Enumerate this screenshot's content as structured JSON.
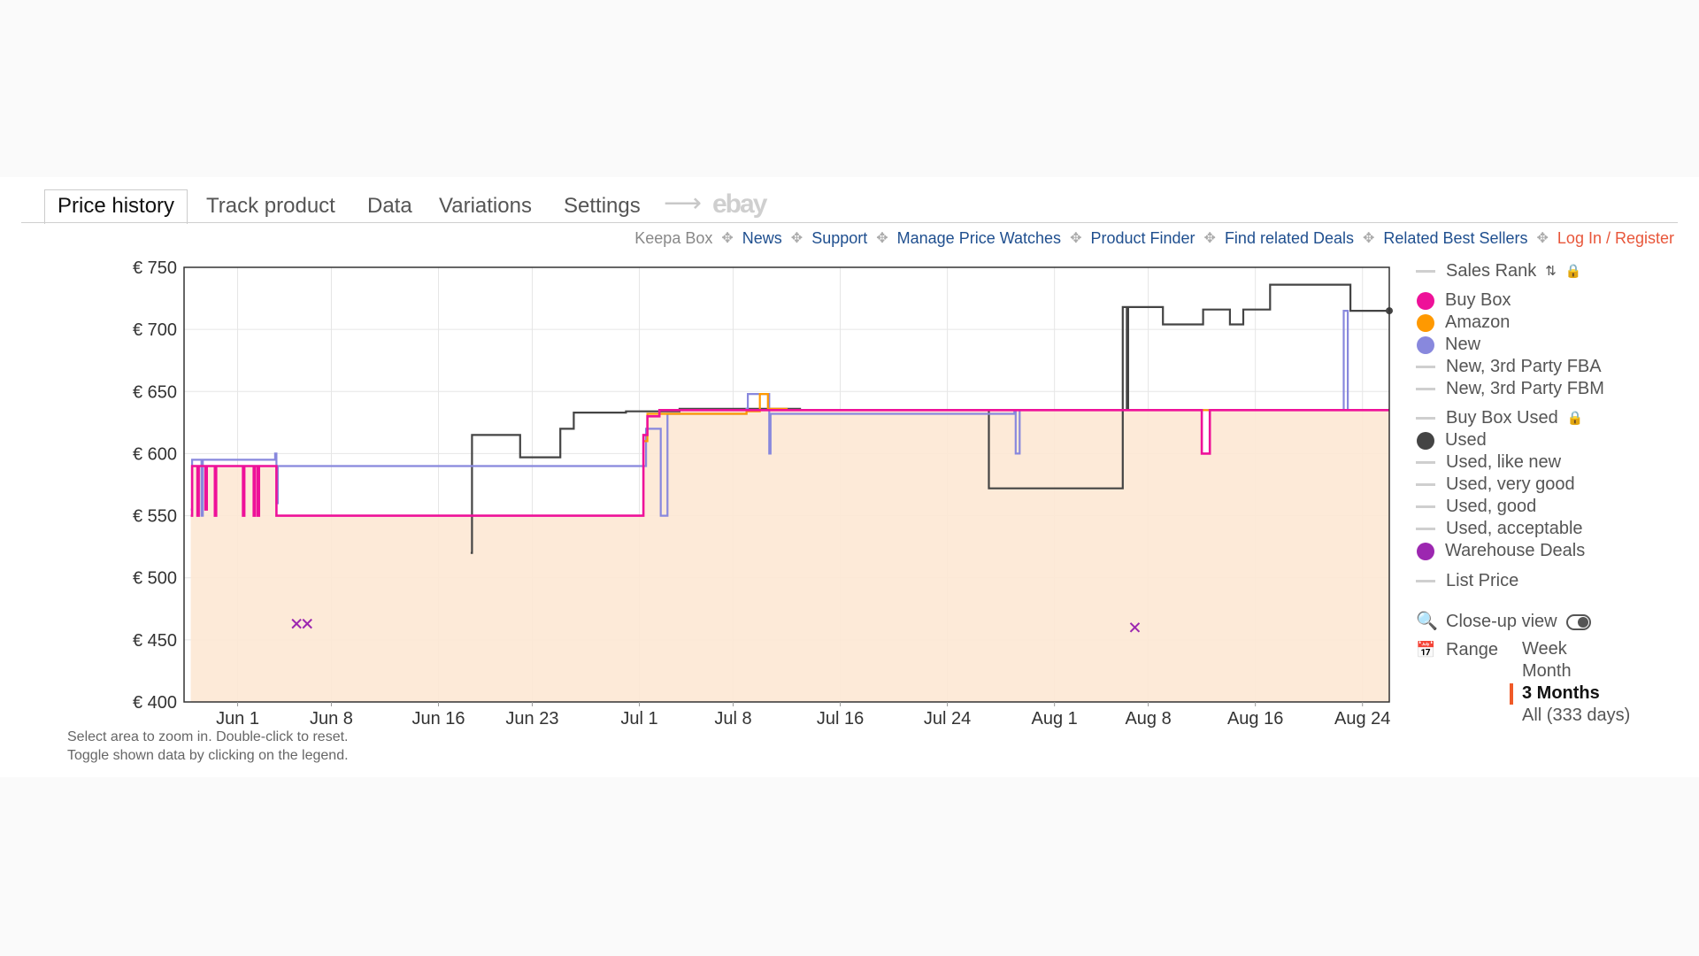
{
  "tabs": [
    {
      "label": "Price history",
      "active": true
    },
    {
      "label": "Track product"
    },
    {
      "label": "Data"
    },
    {
      "label": "Variations"
    },
    {
      "label": "Settings"
    }
  ],
  "ebay_label": "ebay",
  "links": {
    "keepa_box": "Keepa Box",
    "news": "News",
    "support": "Support",
    "manage_watches": "Manage Price Watches",
    "product_finder": "Product Finder",
    "related_deals": "Find related Deals",
    "related_best": "Related Best Sellers",
    "login": "Log In / Register"
  },
  "legend": {
    "sales_rank": "Sales Rank",
    "buy_box": "Buy Box",
    "amazon": "Amazon",
    "new": "New",
    "new_fba": "New, 3rd Party FBA",
    "new_fbm": "New, 3rd Party FBM",
    "buy_box_used": "Buy Box Used",
    "used": "Used",
    "used_like_new": "Used, like new",
    "used_very_good": "Used, very good",
    "used_good": "Used, good",
    "used_acceptable": "Used, acceptable",
    "warehouse": "Warehouse Deals",
    "list_price": "List Price",
    "close_up": "Close-up view",
    "range": "Range"
  },
  "range_options": {
    "week": "Week",
    "month": "Month",
    "three_months": "3 Months",
    "all": "All (333 days)",
    "selected": "3 Months"
  },
  "hints": {
    "line1": "Select area to zoom in. Double-click to reset.",
    "line2": "Toggle shown data by clicking on the legend."
  },
  "colors": {
    "buy_box": "#ee1199",
    "amazon": "#ff9900",
    "new": "#8888dd",
    "used": "#444444",
    "warehouse": "#9c27b0",
    "fill": "#fde8d4"
  },
  "chart_data": {
    "type": "line",
    "start": "2024-05-28",
    "x_tick_labels": [
      "Jun 1",
      "Jun 8",
      "Jun 16",
      "Jun 23",
      "Jul 1",
      "Jul 8",
      "Jul 16",
      "Jul 24",
      "Aug 1",
      "Aug 8",
      "Aug 16",
      "Aug 24"
    ],
    "x_tick_days": [
      4,
      11,
      19,
      26,
      34,
      41,
      49,
      57,
      65,
      72,
      80,
      88
    ],
    "x_range_days": [
      0,
      90
    ],
    "y_tick_labels": [
      "€ 750",
      "€ 700",
      "€ 650",
      "€ 600",
      "€ 550",
      "€ 500",
      "€ 450",
      "€ 400"
    ],
    "ylim": [
      400,
      750
    ],
    "grid": true,
    "legend_position": "right",
    "series": [
      {
        "name": "Buy Box",
        "color": "#ee1199",
        "points": [
          [
            0.5,
            550
          ],
          [
            0.6,
            590
          ],
          [
            1.0,
            550
          ],
          [
            1.1,
            590
          ],
          [
            1.6,
            555
          ],
          [
            1.7,
            590
          ],
          [
            2.3,
            550
          ],
          [
            2.4,
            590
          ],
          [
            4.4,
            550
          ],
          [
            4.5,
            590
          ],
          [
            5.2,
            550
          ],
          [
            5.3,
            590
          ],
          [
            5.5,
            550
          ],
          [
            5.6,
            590
          ],
          [
            6.8,
            590
          ],
          [
            6.9,
            550
          ],
          [
            34.2,
            550
          ],
          [
            34.3,
            615
          ],
          [
            34.6,
            630
          ],
          [
            35.5,
            635
          ],
          [
            48,
            635
          ],
          [
            75,
            635
          ],
          [
            76,
            600
          ],
          [
            76.5,
            600
          ],
          [
            76.6,
            635
          ],
          [
            90,
            635
          ]
        ]
      },
      {
        "name": "Amazon",
        "color": "#ff9900",
        "points": [
          [
            34.3,
            610
          ],
          [
            34.6,
            632
          ],
          [
            36,
            632
          ],
          [
            42,
            634
          ],
          [
            43,
            648
          ],
          [
            43.5,
            648
          ],
          [
            43.6,
            636
          ],
          [
            44,
            636
          ],
          [
            45,
            635
          ],
          [
            90,
            635
          ]
        ]
      },
      {
        "name": "New",
        "color": "#8888dd",
        "points": [
          [
            0.5,
            555
          ],
          [
            0.6,
            595
          ],
          [
            1.2,
            595
          ],
          [
            1.3,
            550
          ],
          [
            1.4,
            595
          ],
          [
            6.8,
            600
          ],
          [
            6.9,
            560
          ],
          [
            7,
            590
          ],
          [
            34.5,
            620
          ],
          [
            35.5,
            620
          ],
          [
            35.6,
            550
          ],
          [
            36,
            550
          ],
          [
            36.1,
            632
          ],
          [
            42,
            636
          ],
          [
            42.1,
            648
          ],
          [
            43.6,
            648
          ],
          [
            43.7,
            600
          ],
          [
            43.8,
            632
          ],
          [
            62,
            635
          ],
          [
            62.1,
            600
          ],
          [
            62.3,
            600
          ],
          [
            62.4,
            635
          ],
          [
            86.5,
            635
          ],
          [
            86.6,
            715
          ],
          [
            86.8,
            715
          ],
          [
            86.9,
            635
          ],
          [
            90,
            635
          ]
        ]
      },
      {
        "name": "Used",
        "color": "#444444",
        "points": [
          [
            21.4,
            520
          ],
          [
            21.5,
            615
          ],
          [
            25,
            615
          ],
          [
            25.1,
            597
          ],
          [
            28,
            597
          ],
          [
            28.1,
            620
          ],
          [
            29,
            620
          ],
          [
            29.1,
            633
          ],
          [
            31,
            633
          ],
          [
            33,
            634
          ],
          [
            37,
            636
          ],
          [
            44,
            636
          ],
          [
            46,
            635
          ],
          [
            60,
            635
          ],
          [
            60.1,
            572
          ],
          [
            61,
            572
          ],
          [
            70,
            572
          ],
          [
            70.1,
            718
          ],
          [
            70.3,
            718
          ],
          [
            70.4,
            635
          ],
          [
            70.5,
            718
          ],
          [
            73,
            718
          ],
          [
            73.1,
            704
          ],
          [
            76,
            704
          ],
          [
            76.1,
            716
          ],
          [
            78,
            716
          ],
          [
            78.1,
            704
          ],
          [
            79,
            704
          ],
          [
            79.1,
            716
          ],
          [
            81,
            716
          ],
          [
            81.1,
            736
          ],
          [
            83,
            736
          ],
          [
            84,
            736
          ],
          [
            87,
            736
          ],
          [
            87.1,
            715
          ],
          [
            90,
            715
          ]
        ]
      },
      {
        "name": "Warehouse Deals",
        "color": "#9c27b0",
        "points": [
          [
            8.4,
            463
          ],
          [
            9.2,
            463
          ],
          [
            71,
            460
          ]
        ]
      }
    ]
  }
}
